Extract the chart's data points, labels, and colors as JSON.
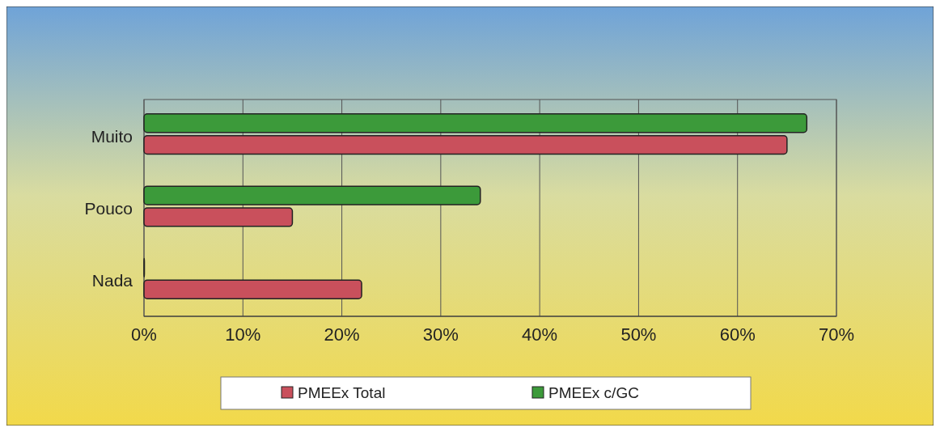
{
  "chart_data": {
    "type": "bar",
    "orientation": "horizontal",
    "categories": [
      "Muito",
      "Pouco",
      "Nada"
    ],
    "series": [
      {
        "name": "PMEEx Total",
        "color": "#c9505c",
        "values": [
          65,
          15,
          22
        ]
      },
      {
        "name": "PMEEx c/GC",
        "color": "#3c9a3a",
        "values": [
          67,
          34,
          0
        ]
      }
    ],
    "xlim": [
      0,
      70
    ],
    "xticks": [
      {
        "value": 0,
        "label": "0%"
      },
      {
        "value": 10,
        "label": "10%"
      },
      {
        "value": 20,
        "label": "20%"
      },
      {
        "value": 30,
        "label": "30%"
      },
      {
        "value": 40,
        "label": "40%"
      },
      {
        "value": 50,
        "label": "50%"
      },
      {
        "value": 60,
        "label": "60%"
      },
      {
        "value": 70,
        "label": "70%"
      }
    ],
    "grid": "x",
    "legend": "bottom"
  }
}
